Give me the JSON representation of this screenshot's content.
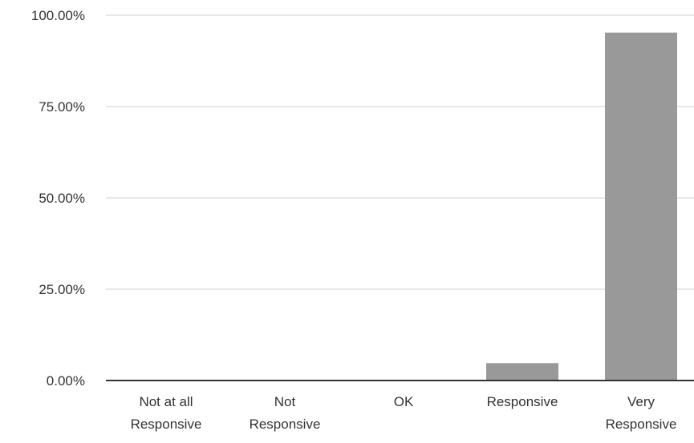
{
  "chart_data": {
    "type": "bar",
    "categories": [
      [
        "Not at all",
        "Responsive"
      ],
      [
        "Not",
        "Responsive"
      ],
      [
        "OK"
      ],
      [
        "Responsive"
      ],
      [
        "Very",
        "Responsive"
      ]
    ],
    "values": [
      0,
      0,
      0,
      4.76,
      95.24
    ],
    "y_ticks": [
      "0.00%",
      "25.00%",
      "50.00%",
      "75.00%",
      "100.00%"
    ],
    "ylim": [
      0,
      100
    ],
    "bar_color": "#999999",
    "grid": true,
    "legend": "none",
    "title": "",
    "xlabel": "",
    "ylabel": ""
  }
}
